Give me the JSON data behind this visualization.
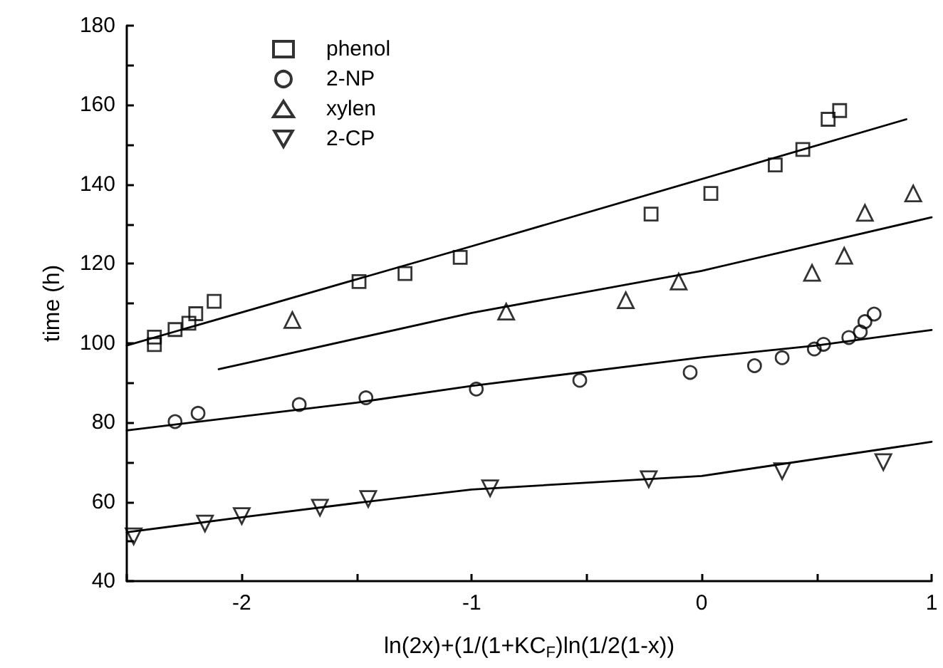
{
  "chart_data": {
    "type": "scatter",
    "xlabel": "ln(2x)+(1/(1+KC$_{F}$)ln(1/2(1-x))",
    "ylabel": "time (h)",
    "xlim": [
      -2.5,
      1
    ],
    "xticks": [
      {
        "value": -2.5,
        "label": null
      },
      "-2",
      {
        "value": -1.5,
        "label": null
      },
      "-1",
      {
        "value": -0.5,
        "label": null
      },
      0,
      {
        "value": 0.5,
        "label": null
      },
      1
    ],
    "ylim": [
      40,
      180
    ],
    "yticks": [
      40,
      {
        "value": 50,
        "label": null
      },
      60,
      {
        "value": 70,
        "label": null
      },
      80,
      {
        "value": 90,
        "label": null
      },
      100,
      {
        "value": 110,
        "label": null
      },
      120,
      {
        "value": 130,
        "label": null
      },
      140,
      {
        "value": 150,
        "label": null
      },
      160,
      {
        "value": 170,
        "label": null
      },
      180
    ],
    "grid": false,
    "legend": "top left",
    "marker": "none",
    "series": [
      {
        "name": "phenol",
        "marker": "square",
        "color": "#000000",
        "x": [
          -2.38,
          -2.38,
          -2.29,
          -2.23,
          -2.2,
          -2.12,
          -1.49,
          -1.29,
          -1.05,
          -0.22,
          0.04,
          0.32,
          0.44,
          0.55,
          0.6
        ],
        "values": [
          101.5,
          99.6,
          103.4,
          105,
          107.4,
          110.5,
          115.5,
          117.5,
          121.6,
          132.5,
          137.7,
          144.9,
          148.8,
          156.4,
          158.6
        ]
      },
      {
        "name": "2-NP",
        "marker": "circle",
        "color": "#000000",
        "x": [
          -2.29,
          -2.19,
          -1.75,
          -1.46,
          -0.98,
          -0.53,
          -0.05,
          0.23,
          0.35,
          0.49,
          0.53,
          0.64,
          0.69,
          0.71,
          0.75
        ],
        "values": [
          80.2,
          82.3,
          84.5,
          86.2,
          88.4,
          90.6,
          92.6,
          94.3,
          96.3,
          98.5,
          99.7,
          101.4,
          102.8,
          105.4,
          107.3
        ]
      },
      {
        "name": "xylen",
        "marker": "triangle",
        "color": "#000000",
        "x": [
          -1.78,
          -0.85,
          -0.33,
          -0.1,
          0.48,
          0.62,
          0.71,
          0.92
        ],
        "values": [
          105.8,
          107.9,
          110.8,
          115.5,
          117.7,
          122,
          132.8,
          137.7
        ]
      },
      {
        "name": "2-CP",
        "marker": "triangle_down",
        "color": "#000000",
        "x": [
          -2.47,
          -2.16,
          -2,
          -1.66,
          -1.45,
          -0.92,
          -0.23,
          0.35,
          0.79
        ],
        "values": [
          51.3,
          54.5,
          56.4,
          58.5,
          60.7,
          63.4,
          65.7,
          67.7,
          70
        ]
      },
      {
        "type": "line",
        "color": "#000000",
        "x": [
          -2.5,
          -1,
          0.89
        ],
        "values": [
          99.4,
          124.4,
          156.4
        ]
      },
      {
        "type": "line",
        "color": "#000000",
        "x": [
          -2.1,
          -1,
          0,
          1
        ],
        "values": [
          93.4,
          107.6,
          118.2,
          131.7
        ]
      },
      {
        "type": "line",
        "color": "#000000",
        "x": [
          -2.5,
          -1.5,
          -1,
          0,
          0.5,
          1
        ],
        "values": [
          78,
          85,
          89.2,
          96.4,
          99.4,
          103.3
        ]
      },
      {
        "type": "line",
        "color": "#000000",
        "x": [
          -2.5,
          -2,
          -1.5,
          -1,
          0,
          1
        ],
        "values": [
          52.3,
          56.1,
          59.7,
          63.1,
          66.5,
          75.1
        ]
      }
    ]
  }
}
